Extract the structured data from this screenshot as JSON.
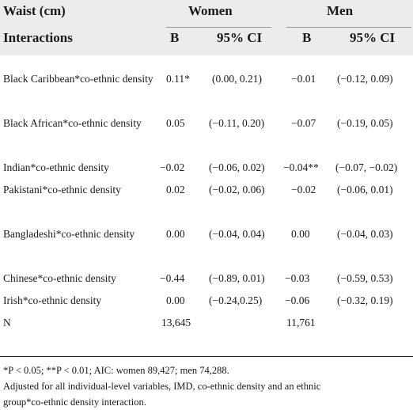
{
  "header": {
    "row1": {
      "col0": "Waist (cm)",
      "women": "Women",
      "men": "Men"
    },
    "row2": {
      "col0": "Interactions",
      "b_women": "B",
      "ci_women": "95% CI",
      "b_men": "B",
      "ci_men": "95% CI"
    }
  },
  "rows": [
    {
      "label": "Black Caribbean*co-ethnic density",
      "b_w": "0.11*",
      "ci_w": "(0.00, 0.21)",
      "b_m": "−0.01",
      "ci_m": "(−0.12, 0.09)"
    },
    {
      "label": "Black African*co-ethnic density",
      "b_w": "0.05",
      "ci_w": "(−0.11, 0.20)",
      "b_m": "−0.07",
      "ci_m": "(−0.19, 0.05)"
    },
    {
      "label": "Indian*co-ethnic density",
      "b_w": "−0.02",
      "ci_w": "(−0.06, 0.02)",
      "b_m": "−0.04**",
      "ci_m": "(−0.07, −0.02)"
    },
    {
      "label": "Pakistani*co-ethnic density",
      "b_w": "0.02",
      "ci_w": "(−0.02, 0.06)",
      "b_m": "−0.02",
      "ci_m": "(−0.06, 0.01)"
    },
    {
      "label": "Bangladeshi*co-ethnic density",
      "b_w": "0.00",
      "ci_w": "(−0.04, 0.04)",
      "b_m": "0.00",
      "ci_m": "(−0.04, 0.03)"
    },
    {
      "label": "Chinese*co-ethnic density",
      "b_w": "−0.44",
      "ci_w": "(−0.89, 0.01)",
      "b_m": "−0.03",
      "ci_m": "(−0.59, 0.53)"
    },
    {
      "label": "Irish*co-ethnic density",
      "b_w": "0.00",
      "ci_w": "(−0.24,0.25)",
      "b_m": "−0.06",
      "ci_m": "(−0.32, 0.19)"
    },
    {
      "label": "N",
      "b_w": "13,645",
      "ci_w": "",
      "b_m": "11,761",
      "ci_m": ""
    }
  ],
  "notes": {
    "line1": "*P < 0.05; **P < 0.01; AIC: women 89,427; men 74,288.",
    "line2": "Adjusted for all individual-level variables, IMD, co-ethnic density and an ethnic",
    "line3": "group*co-ethnic density interaction."
  }
}
